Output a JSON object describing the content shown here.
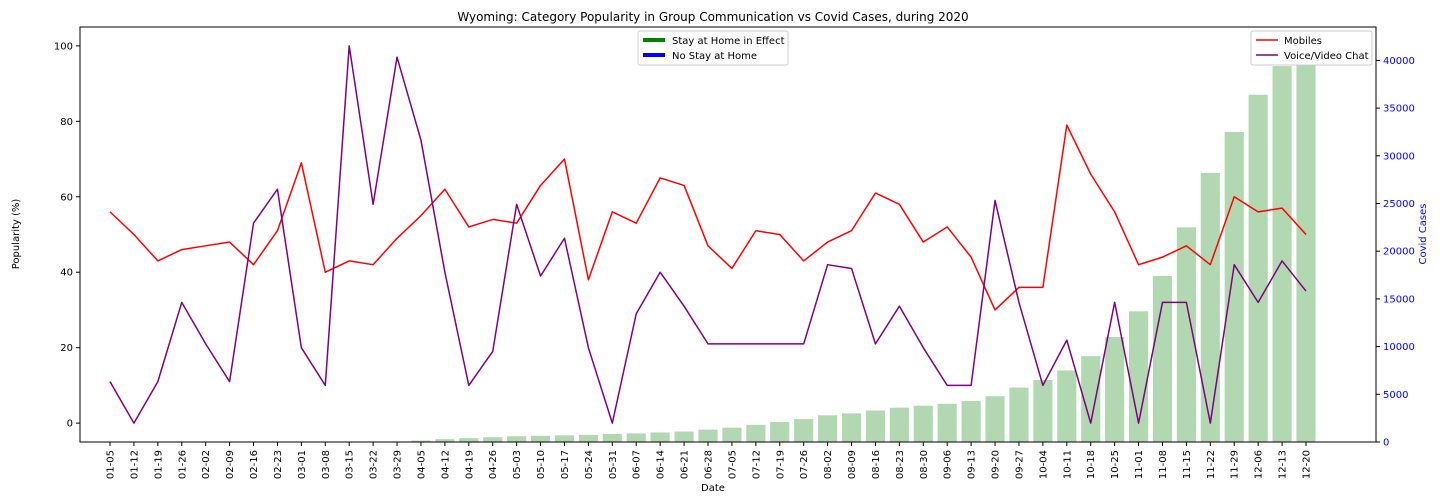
{
  "chart_data": {
    "type": "bar+line",
    "title": "Wyoming: Category Popularity in Group Communication vs Covid Cases, during 2020",
    "xlabel": "Date",
    "ylabel": "Popularity (%)",
    "y2label": "Covid Cases",
    "ylim": [
      -5,
      105
    ],
    "y2lim": [
      0,
      43500
    ],
    "yticks": [
      0,
      20,
      40,
      60,
      80,
      100
    ],
    "y2ticks": [
      0,
      5000,
      10000,
      15000,
      20000,
      25000,
      30000,
      35000,
      40000
    ],
    "grid": false,
    "categories": [
      "01-05",
      "01-12",
      "01-19",
      "01-26",
      "02-02",
      "02-09",
      "02-16",
      "02-23",
      "03-01",
      "03-08",
      "03-15",
      "03-22",
      "03-29",
      "04-05",
      "04-12",
      "04-19",
      "04-26",
      "05-03",
      "05-10",
      "05-17",
      "05-24",
      "05-31",
      "06-07",
      "06-14",
      "06-21",
      "06-28",
      "07-05",
      "07-12",
      "07-19",
      "07-26",
      "08-02",
      "08-09",
      "08-16",
      "08-23",
      "08-30",
      "09-06",
      "09-13",
      "09-20",
      "09-27",
      "10-04",
      "10-11",
      "10-18",
      "10-25",
      "11-01",
      "11-08",
      "11-15",
      "11-22",
      "11-29",
      "12-06",
      "12-13",
      "12-20"
    ],
    "covid_cases": {
      "color": "#b2d8b2",
      "axis": "right",
      "values": [
        0,
        0,
        0,
        0,
        0,
        0,
        0,
        0,
        0,
        0,
        0,
        0,
        50,
        150,
        300,
        400,
        500,
        600,
        650,
        700,
        750,
        850,
        900,
        1000,
        1100,
        1300,
        1500,
        1800,
        2100,
        2400,
        2800,
        3000,
        3300,
        3600,
        3800,
        4000,
        4300,
        4800,
        5700,
        6500,
        7500,
        9000,
        11000,
        13700,
        17400,
        22500,
        28200,
        32500,
        36400,
        39400,
        41800
      ]
    },
    "series": [
      {
        "name": "Mobiles",
        "color": "#ff0000",
        "values": [
          56,
          50,
          43,
          46,
          47,
          48,
          42,
          51,
          69,
          40,
          43,
          42,
          49,
          55,
          62,
          52,
          54,
          53,
          63,
          70,
          38,
          56,
          53,
          65,
          63,
          47,
          41,
          51,
          50,
          43,
          48,
          51,
          61,
          58,
          48,
          52,
          44,
          30,
          36,
          36,
          79,
          66,
          56,
          42,
          44,
          47,
          42,
          60,
          56,
          57,
          50
        ]
      },
      {
        "name": "Voice/Video Chat",
        "color": "#800080",
        "values": [
          11,
          0,
          11,
          32,
          21,
          11,
          53,
          62,
          20,
          10,
          100,
          58,
          97,
          75,
          40,
          10,
          19,
          58,
          39,
          49,
          20,
          0,
          29,
          40,
          31,
          21,
          21,
          21,
          21,
          21,
          42,
          41,
          21,
          31,
          20,
          10,
          10,
          59,
          32,
          10,
          22,
          0,
          32,
          0,
          32,
          32,
          0,
          42,
          32,
          43,
          35
        ]
      }
    ],
    "legends": {
      "policy": [
        "Stay at Home in Effect",
        "No Stay at Home"
      ],
      "policy_colors": [
        "#008000",
        "#0000ff"
      ],
      "policy_placement": "top-center",
      "series_placement": "top-right"
    },
    "axis_colors": {
      "right": "#0000ff"
    }
  }
}
